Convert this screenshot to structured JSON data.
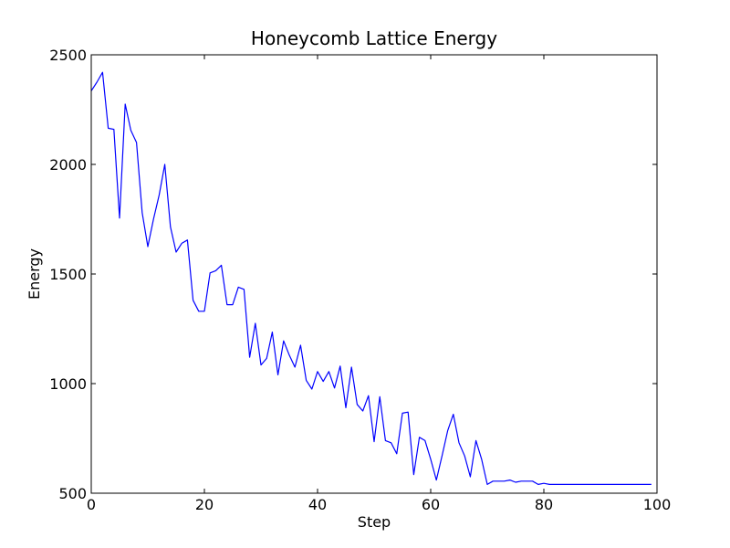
{
  "chart_data": {
    "type": "line",
    "title": "Honeycomb Lattice Energy",
    "xlabel": "Step",
    "ylabel": "Energy",
    "xlim": [
      0,
      100
    ],
    "ylim": [
      500,
      2500
    ],
    "xticks": [
      0,
      20,
      40,
      60,
      80,
      100
    ],
    "yticks": [
      500,
      1000,
      1500,
      2000,
      2500
    ],
    "grid": false,
    "line_color": "#0000ff",
    "series": [
      {
        "x": [
          0,
          1,
          2,
          3,
          4,
          5,
          6,
          7,
          8,
          9,
          10,
          11,
          12,
          13,
          14,
          15,
          16,
          17,
          18,
          19,
          20,
          21,
          22,
          23,
          24,
          25,
          26,
          27,
          28,
          29,
          30,
          31,
          32,
          33,
          34,
          35,
          36,
          37,
          38,
          39,
          40,
          41,
          42,
          43,
          44,
          45,
          46,
          47,
          48,
          49,
          50,
          51,
          52,
          53,
          54,
          55,
          56,
          57,
          58,
          59,
          60,
          61,
          62,
          63,
          64,
          65,
          66,
          67,
          68,
          69,
          70,
          71,
          72,
          73,
          74,
          75,
          76,
          77,
          78,
          79,
          80,
          81,
          82,
          83,
          84,
          85,
          86,
          87,
          88,
          89,
          90,
          91,
          92,
          93,
          94,
          95,
          96,
          97,
          98,
          99
        ],
        "values": [
          2335,
          2375,
          2420,
          2165,
          2160,
          1755,
          2275,
          2155,
          2100,
          1780,
          1625,
          1750,
          1860,
          2000,
          1715,
          1600,
          1640,
          1655,
          1380,
          1330,
          1330,
          1505,
          1515,
          1540,
          1360,
          1360,
          1440,
          1430,
          1120,
          1275,
          1085,
          1115,
          1235,
          1040,
          1195,
          1130,
          1075,
          1175,
          1015,
          975,
          1055,
          1010,
          1055,
          980,
          1080,
          890,
          1075,
          905,
          875,
          945,
          735,
          940,
          740,
          730,
          680,
          865,
          870,
          585,
          755,
          740,
          655,
          560,
          670,
          785,
          860,
          730,
          670,
          575,
          740,
          655,
          540,
          555,
          555,
          555,
          560,
          550,
          555,
          555,
          555,
          540,
          545,
          540,
          540,
          540,
          540,
          540,
          540,
          540,
          540,
          540,
          540,
          540,
          540,
          540,
          540,
          540,
          540,
          540,
          540,
          540
        ]
      }
    ]
  }
}
